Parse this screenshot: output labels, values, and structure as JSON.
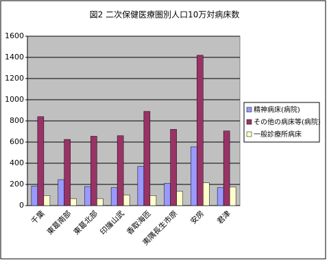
{
  "chart_data": {
    "type": "bar",
    "title": "図2 二次保健医療圏別人口10万対病床数",
    "categories": [
      "千葉",
      "東葛南部",
      "東葛北部",
      "印旛山武",
      "香取海匝",
      "夷隅長生市原",
      "安房",
      "君津"
    ],
    "series": [
      {
        "name": "精神病床(病院)",
        "color": "#9999ff",
        "values": [
          185,
          245,
          180,
          170,
          370,
          210,
          555,
          170
        ]
      },
      {
        "name": "その他の病床等(病院)",
        "color": "#993366",
        "values": [
          840,
          625,
          655,
          660,
          890,
          720,
          1420,
          705
        ]
      },
      {
        "name": "一般診療所病床",
        "color": "#ffffcc",
        "values": [
          95,
          65,
          65,
          100,
          95,
          135,
          215,
          175
        ]
      }
    ],
    "ylim": [
      0,
      1600
    ],
    "yticks": [
      0,
      200,
      400,
      600,
      800,
      1000,
      1200,
      1400,
      1600
    ],
    "grid": true,
    "legend": "right"
  }
}
